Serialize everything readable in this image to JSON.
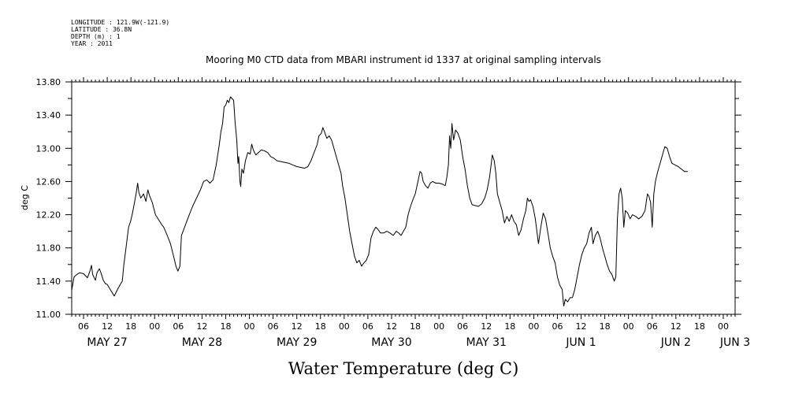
{
  "header": {
    "longitude": "LONGITUDE : 121.9W(-121.9)",
    "latitude": "LATITUDE : 36.8N",
    "depth": "DEPTH (m) : 1",
    "year": "YEAR : 2011"
  },
  "chart_data": {
    "type": "line",
    "title": "Mooring M0 CTD data from MBARI instrument id 1337 at original sampling intervals",
    "xlabel": "Water Temperature (deg C)",
    "ylabel": "deg C",
    "ylim": [
      11.0,
      13.8
    ],
    "yticks": [
      "11.00",
      "11.40",
      "11.80",
      "12.20",
      "12.60",
      "13.00",
      "13.40",
      "13.80"
    ],
    "xlim_hours": [
      3,
      171
    ],
    "xtick_labels": [
      {
        "h": 6,
        "label": "06"
      },
      {
        "h": 12,
        "label": "12"
      },
      {
        "h": 18,
        "label": "18"
      },
      {
        "h": 24,
        "label": "00"
      },
      {
        "h": 30,
        "label": "06"
      },
      {
        "h": 36,
        "label": "12"
      },
      {
        "h": 42,
        "label": "18"
      },
      {
        "h": 48,
        "label": "00"
      },
      {
        "h": 54,
        "label": "06"
      },
      {
        "h": 60,
        "label": "12"
      },
      {
        "h": 66,
        "label": "18"
      },
      {
        "h": 72,
        "label": "00"
      },
      {
        "h": 78,
        "label": "06"
      },
      {
        "h": 84,
        "label": "12"
      },
      {
        "h": 90,
        "label": "18"
      },
      {
        "h": 96,
        "label": "00"
      },
      {
        "h": 102,
        "label": "06"
      },
      {
        "h": 108,
        "label": "12"
      },
      {
        "h": 114,
        "label": "18"
      },
      {
        "h": 120,
        "label": "00"
      },
      {
        "h": 126,
        "label": "06"
      },
      {
        "h": 132,
        "label": "12"
      },
      {
        "h": 138,
        "label": "18"
      },
      {
        "h": 144,
        "label": "00"
      },
      {
        "h": 150,
        "label": "06"
      },
      {
        "h": 156,
        "label": "12"
      },
      {
        "h": 162,
        "label": "18"
      },
      {
        "h": 168,
        "label": "00"
      }
    ],
    "day_labels": [
      {
        "h": 12,
        "label": "MAY 27"
      },
      {
        "h": 36,
        "label": "MAY 28"
      },
      {
        "h": 60,
        "label": "MAY 29"
      },
      {
        "h": 84,
        "label": "MAY 30"
      },
      {
        "h": 108,
        "label": "MAY 31"
      },
      {
        "h": 132,
        "label": "JUN  1"
      },
      {
        "h": 156,
        "label": "JUN  2"
      },
      {
        "h": 171,
        "label": "JUN  3"
      }
    ],
    "series": [
      {
        "points": [
          [
            3.0,
            11.29
          ],
          [
            3.6,
            11.45
          ],
          [
            4.3,
            11.48
          ],
          [
            5.0,
            11.5
          ],
          [
            6.0,
            11.49
          ],
          [
            7.0,
            11.44
          ],
          [
            7.6,
            11.52
          ],
          [
            8.0,
            11.59
          ],
          [
            8.3,
            11.48
          ],
          [
            9.0,
            11.41
          ],
          [
            9.4,
            11.5
          ],
          [
            10.0,
            11.55
          ],
          [
            10.4,
            11.5
          ],
          [
            11.0,
            11.41
          ],
          [
            11.5,
            11.37
          ],
          [
            12.0,
            11.36
          ],
          [
            13.0,
            11.28
          ],
          [
            13.8,
            11.22
          ],
          [
            14.4,
            11.28
          ],
          [
            15.3,
            11.36
          ],
          [
            15.8,
            11.4
          ],
          [
            16.2,
            11.6
          ],
          [
            16.8,
            11.82
          ],
          [
            17.4,
            12.05
          ],
          [
            17.9,
            12.12
          ],
          [
            18.3,
            12.2
          ],
          [
            18.8,
            12.32
          ],
          [
            19.3,
            12.45
          ],
          [
            19.7,
            12.58
          ],
          [
            20.0,
            12.47
          ],
          [
            20.5,
            12.4
          ],
          [
            21.2,
            12.45
          ],
          [
            21.8,
            12.36
          ],
          [
            22.3,
            12.5
          ],
          [
            22.7,
            12.43
          ],
          [
            23.4,
            12.35
          ],
          [
            24.2,
            12.2
          ],
          [
            25.0,
            12.14
          ],
          [
            25.8,
            12.08
          ],
          [
            26.3,
            12.05
          ],
          [
            27.2,
            11.95
          ],
          [
            28.0,
            11.85
          ],
          [
            28.8,
            11.7
          ],
          [
            29.4,
            11.58
          ],
          [
            29.9,
            11.52
          ],
          [
            30.4,
            11.58
          ],
          [
            30.8,
            11.95
          ],
          [
            31.6,
            12.05
          ],
          [
            32.6,
            12.18
          ],
          [
            33.6,
            12.3
          ],
          [
            34.6,
            12.4
          ],
          [
            35.6,
            12.5
          ],
          [
            36.4,
            12.6
          ],
          [
            37.2,
            12.62
          ],
          [
            38.0,
            12.58
          ],
          [
            38.8,
            12.62
          ],
          [
            39.6,
            12.8
          ],
          [
            40.4,
            13.05
          ],
          [
            40.8,
            13.2
          ],
          [
            41.2,
            13.3
          ],
          [
            41.6,
            13.5
          ],
          [
            42.0,
            13.52
          ],
          [
            42.4,
            13.58
          ],
          [
            42.8,
            13.55
          ],
          [
            43.2,
            13.62
          ],
          [
            43.6,
            13.6
          ],
          [
            44.0,
            13.58
          ],
          [
            44.4,
            13.3
          ],
          [
            44.8,
            13.1
          ],
          [
            45.1,
            12.82
          ],
          [
            45.3,
            12.9
          ],
          [
            45.6,
            12.6
          ],
          [
            45.8,
            12.54
          ],
          [
            46.1,
            12.75
          ],
          [
            46.5,
            12.7
          ],
          [
            47.0,
            12.85
          ],
          [
            47.6,
            12.95
          ],
          [
            48.2,
            12.93
          ],
          [
            48.6,
            13.05
          ],
          [
            49.0,
            12.98
          ],
          [
            49.6,
            12.92
          ],
          [
            50.3,
            12.95
          ],
          [
            51.0,
            12.98
          ],
          [
            51.8,
            12.97
          ],
          [
            52.6,
            12.95
          ],
          [
            53.4,
            12.9
          ],
          [
            54.2,
            12.88
          ],
          [
            55.0,
            12.85
          ],
          [
            56.0,
            12.84
          ],
          [
            57.0,
            12.83
          ],
          [
            58.0,
            12.82
          ],
          [
            59.0,
            12.8
          ],
          [
            60.0,
            12.78
          ],
          [
            61.0,
            12.77
          ],
          [
            62.0,
            12.76
          ],
          [
            62.8,
            12.78
          ],
          [
            63.6,
            12.85
          ],
          [
            64.4,
            12.95
          ],
          [
            65.2,
            13.05
          ],
          [
            65.6,
            13.15
          ],
          [
            66.2,
            13.18
          ],
          [
            66.6,
            13.25
          ],
          [
            67.0,
            13.2
          ],
          [
            67.6,
            13.12
          ],
          [
            68.2,
            13.15
          ],
          [
            68.8,
            13.1
          ],
          [
            69.4,
            13.0
          ],
          [
            70.0,
            12.9
          ],
          [
            70.6,
            12.8
          ],
          [
            71.2,
            12.7
          ],
          [
            71.6,
            12.55
          ],
          [
            72.2,
            12.4
          ],
          [
            72.8,
            12.2
          ],
          [
            73.4,
            12.0
          ],
          [
            74.0,
            11.85
          ],
          [
            74.6,
            11.7
          ],
          [
            75.2,
            11.62
          ],
          [
            75.8,
            11.65
          ],
          [
            76.4,
            11.58
          ],
          [
            77.0,
            11.62
          ],
          [
            77.6,
            11.65
          ],
          [
            78.2,
            11.72
          ],
          [
            78.8,
            11.92
          ],
          [
            79.4,
            12.0
          ],
          [
            80.0,
            12.05
          ],
          [
            80.6,
            12.02
          ],
          [
            81.2,
            11.98
          ],
          [
            82.0,
            11.98
          ],
          [
            82.8,
            12.0
          ],
          [
            83.6,
            11.98
          ],
          [
            84.4,
            11.95
          ],
          [
            85.2,
            12.0
          ],
          [
            85.8,
            11.98
          ],
          [
            86.4,
            11.95
          ],
          [
            87.0,
            12.0
          ],
          [
            87.6,
            12.05
          ],
          [
            88.2,
            12.2
          ],
          [
            88.8,
            12.3
          ],
          [
            89.4,
            12.38
          ],
          [
            90.0,
            12.45
          ],
          [
            90.6,
            12.58
          ],
          [
            91.2,
            12.72
          ],
          [
            91.6,
            12.7
          ],
          [
            92.0,
            12.6
          ],
          [
            92.6,
            12.55
          ],
          [
            93.2,
            12.52
          ],
          [
            93.8,
            12.58
          ],
          [
            94.4,
            12.6
          ],
          [
            95.2,
            12.58
          ],
          [
            96.0,
            12.58
          ],
          [
            96.8,
            12.57
          ],
          [
            97.6,
            12.55
          ],
          [
            98.0,
            12.65
          ],
          [
            98.4,
            12.8
          ],
          [
            98.7,
            13.15
          ],
          [
            99.0,
            13.0
          ],
          [
            99.3,
            13.3
          ],
          [
            99.7,
            13.1
          ],
          [
            100.2,
            13.22
          ],
          [
            100.8,
            13.18
          ],
          [
            101.4,
            13.1
          ],
          [
            102.0,
            12.9
          ],
          [
            102.6,
            12.75
          ],
          [
            103.2,
            12.55
          ],
          [
            103.8,
            12.4
          ],
          [
            104.4,
            12.32
          ],
          [
            105.2,
            12.31
          ],
          [
            106.0,
            12.3
          ],
          [
            106.8,
            12.33
          ],
          [
            107.6,
            12.4
          ],
          [
            108.2,
            12.5
          ],
          [
            108.8,
            12.65
          ],
          [
            109.2,
            12.8
          ],
          [
            109.5,
            12.92
          ],
          [
            110.0,
            12.85
          ],
          [
            110.4,
            12.7
          ],
          [
            110.8,
            12.45
          ],
          [
            111.4,
            12.35
          ],
          [
            112.0,
            12.25
          ],
          [
            112.6,
            12.1
          ],
          [
            113.2,
            12.18
          ],
          [
            113.8,
            12.12
          ],
          [
            114.4,
            12.2
          ],
          [
            115.0,
            12.12
          ],
          [
            115.6,
            12.08
          ],
          [
            116.2,
            11.95
          ],
          [
            116.8,
            12.02
          ],
          [
            117.4,
            12.15
          ],
          [
            118.0,
            12.25
          ],
          [
            118.4,
            12.4
          ],
          [
            118.8,
            12.36
          ],
          [
            119.2,
            12.38
          ],
          [
            119.8,
            12.3
          ],
          [
            120.4,
            12.15
          ],
          [
            120.8,
            12.0
          ],
          [
            121.2,
            11.85
          ],
          [
            121.8,
            12.05
          ],
          [
            122.4,
            12.22
          ],
          [
            123.0,
            12.15
          ],
          [
            123.6,
            11.98
          ],
          [
            124.2,
            11.8
          ],
          [
            124.8,
            11.7
          ],
          [
            125.4,
            11.62
          ],
          [
            126.0,
            11.45
          ],
          [
            126.6,
            11.35
          ],
          [
            127.2,
            11.3
          ],
          [
            127.6,
            11.1
          ],
          [
            128.0,
            11.18
          ],
          [
            128.6,
            11.15
          ],
          [
            129.2,
            11.2
          ],
          [
            129.8,
            11.2
          ],
          [
            130.4,
            11.3
          ],
          [
            131.0,
            11.45
          ],
          [
            131.6,
            11.6
          ],
          [
            132.2,
            11.72
          ],
          [
            132.8,
            11.8
          ],
          [
            133.4,
            11.85
          ],
          [
            134.0,
            11.98
          ],
          [
            134.6,
            12.05
          ],
          [
            135.0,
            11.85
          ],
          [
            135.6,
            11.95
          ],
          [
            136.2,
            12.0
          ],
          [
            136.8,
            11.92
          ],
          [
            137.4,
            11.8
          ],
          [
            138.0,
            11.7
          ],
          [
            138.6,
            11.6
          ],
          [
            139.2,
            11.52
          ],
          [
            139.8,
            11.48
          ],
          [
            140.4,
            11.4
          ],
          [
            140.8,
            11.45
          ],
          [
            141.2,
            12.15
          ],
          [
            141.6,
            12.45
          ],
          [
            142.0,
            12.52
          ],
          [
            142.4,
            12.4
          ],
          [
            142.8,
            12.05
          ],
          [
            143.2,
            12.25
          ],
          [
            143.8,
            12.22
          ],
          [
            144.4,
            12.15
          ],
          [
            145.0,
            12.2
          ],
          [
            145.8,
            12.18
          ],
          [
            146.6,
            12.15
          ],
          [
            147.4,
            12.18
          ],
          [
            148.2,
            12.25
          ],
          [
            148.8,
            12.45
          ],
          [
            149.2,
            12.42
          ],
          [
            149.6,
            12.35
          ],
          [
            150.0,
            12.05
          ],
          [
            150.4,
            12.45
          ],
          [
            150.8,
            12.6
          ],
          [
            151.4,
            12.72
          ],
          [
            152.0,
            12.82
          ],
          [
            152.6,
            12.92
          ],
          [
            153.2,
            13.02
          ],
          [
            153.8,
            13.0
          ],
          [
            154.4,
            12.9
          ],
          [
            155.0,
            12.82
          ],
          [
            155.8,
            12.8
          ],
          [
            156.6,
            12.78
          ],
          [
            157.4,
            12.75
          ],
          [
            158.2,
            12.72
          ],
          [
            159.0,
            12.72
          ]
        ]
      }
    ]
  }
}
